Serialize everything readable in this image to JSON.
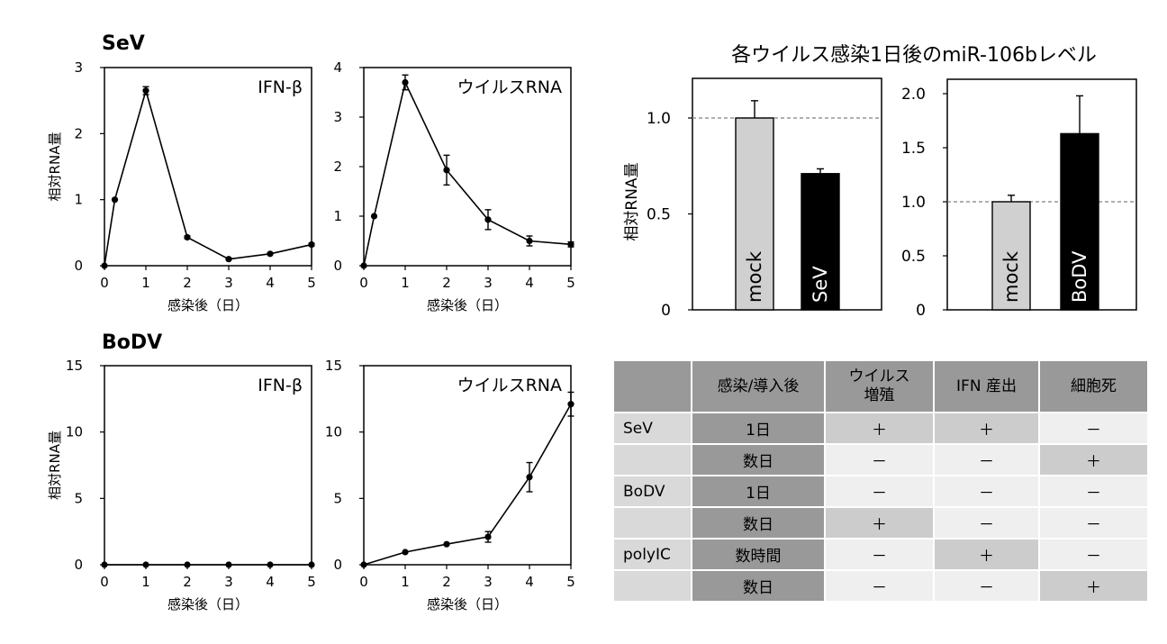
{
  "sections": {
    "sev": "SeV",
    "bodv": "BoDV"
  },
  "chart_data": [
    {
      "id": "sev-ifn",
      "type": "line",
      "panel_label": "IFN-β",
      "ylabel": "相対RNA量",
      "xlabel": "感染後（日）",
      "xlim": [
        0,
        5
      ],
      "ylim": [
        0,
        3
      ],
      "xticks": [
        0,
        1,
        2,
        3,
        4,
        5
      ],
      "yticks": [
        0,
        1,
        2,
        3
      ],
      "x": [
        0,
        0.25,
        1,
        2,
        3,
        4,
        5
      ],
      "y": [
        0,
        1.0,
        2.65,
        0.43,
        0.1,
        0.18,
        0.32
      ],
      "err": [
        0,
        0,
        0.06,
        0.02,
        0.01,
        0.01,
        0.02
      ]
    },
    {
      "id": "sev-virus",
      "type": "line",
      "panel_label": "ウイルスRNA",
      "ylabel": "",
      "xlabel": "感染後（日）",
      "xlim": [
        0,
        5
      ],
      "ylim": [
        0,
        4
      ],
      "xticks": [
        0,
        1,
        2,
        3,
        4,
        5
      ],
      "yticks": [
        0,
        1,
        2,
        3,
        4
      ],
      "x": [
        0,
        0.25,
        1,
        2,
        3,
        4,
        5
      ],
      "y": [
        0,
        1.0,
        3.7,
        1.93,
        0.93,
        0.5,
        0.43
      ],
      "err": [
        0,
        0,
        0.15,
        0.3,
        0.2,
        0.1,
        0.05
      ]
    },
    {
      "id": "mir-sev",
      "type": "bar",
      "title": "各ウイルス感染1日後のmiR-106bレベル",
      "ylabel": "相対RNA量",
      "ylim": [
        0,
        1.2
      ],
      "yticks": [
        0,
        0.5,
        1.0
      ],
      "ytick_labels": [
        "0",
        "0.5",
        "1.0"
      ],
      "reference_line": 1.0,
      "categories": [
        "mock",
        "SeV"
      ],
      "values": [
        1.0,
        0.71
      ],
      "err": [
        0.09,
        0.025
      ],
      "colors": [
        "#d0d0d0",
        "#000000"
      ],
      "label_colors": [
        "#000000",
        "#ffffff"
      ]
    },
    {
      "id": "mir-bodv",
      "type": "bar",
      "ylim": [
        0,
        2.0
      ],
      "yticks": [
        0,
        0.5,
        1.0,
        1.5,
        2.0
      ],
      "ytick_labels": [
        "0",
        "0.5",
        "1.0",
        "1.5",
        "2.0"
      ],
      "reference_line": 1.0,
      "categories": [
        "mock",
        "BoDV"
      ],
      "values": [
        1.0,
        1.63
      ],
      "err": [
        0.06,
        0.35
      ],
      "colors": [
        "#d0d0d0",
        "#000000"
      ],
      "label_colors": [
        "#000000",
        "#ffffff"
      ]
    },
    {
      "id": "bodv-ifn",
      "type": "line",
      "panel_label": "IFN-β",
      "ylabel": "相対RNA量",
      "xlabel": "感染後（日）",
      "xlim": [
        0,
        5
      ],
      "ylim": [
        0,
        15
      ],
      "xticks": [
        0,
        1,
        2,
        3,
        4,
        5
      ],
      "yticks": [
        0,
        5,
        10,
        15
      ],
      "x": [
        0,
        1,
        2,
        3,
        4,
        5
      ],
      "y": [
        0,
        0,
        0,
        0,
        0,
        0
      ],
      "err": [
        0,
        0,
        0,
        0,
        0,
        0
      ]
    },
    {
      "id": "bodv-virus",
      "type": "line",
      "panel_label": "ウイルスRNA",
      "ylabel": "",
      "xlabel": "感染後（日）",
      "xlim": [
        0,
        5
      ],
      "ylim": [
        0,
        15
      ],
      "xticks": [
        0,
        1,
        2,
        3,
        4,
        5
      ],
      "yticks": [
        0,
        5,
        10,
        15
      ],
      "x": [
        0,
        1,
        2,
        3,
        4,
        5
      ],
      "y": [
        0,
        0.95,
        1.55,
        2.1,
        6.6,
        12.1
      ],
      "err": [
        0,
        0,
        0,
        0.4,
        1.1,
        0.9
      ]
    }
  ],
  "table": {
    "headers": [
      "",
      "感染/導入後",
      "ウイルス\n増殖",
      "IFN 産出",
      "細胞死"
    ],
    "rows": [
      {
        "group": "SeV",
        "time": "1日",
        "vals": [
          "＋",
          "＋",
          "－"
        ],
        "hl": [
          true,
          true,
          false
        ]
      },
      {
        "group": "",
        "time": "数日",
        "vals": [
          "－",
          "－",
          "＋"
        ],
        "hl": [
          false,
          false,
          true
        ]
      },
      {
        "group": "BoDV",
        "time": "1日",
        "vals": [
          "－",
          "－",
          "－"
        ],
        "hl": [
          false,
          false,
          false
        ]
      },
      {
        "group": "",
        "time": "数日",
        "vals": [
          "＋",
          "－",
          "－"
        ],
        "hl": [
          true,
          false,
          false
        ]
      },
      {
        "group": "polyIC",
        "time": "数時間",
        "vals": [
          "－",
          "＋",
          "－"
        ],
        "hl": [
          false,
          true,
          false
        ]
      },
      {
        "group": "",
        "time": "数日",
        "vals": [
          "－",
          "－",
          "＋"
        ],
        "hl": [
          false,
          false,
          true
        ]
      }
    ]
  }
}
